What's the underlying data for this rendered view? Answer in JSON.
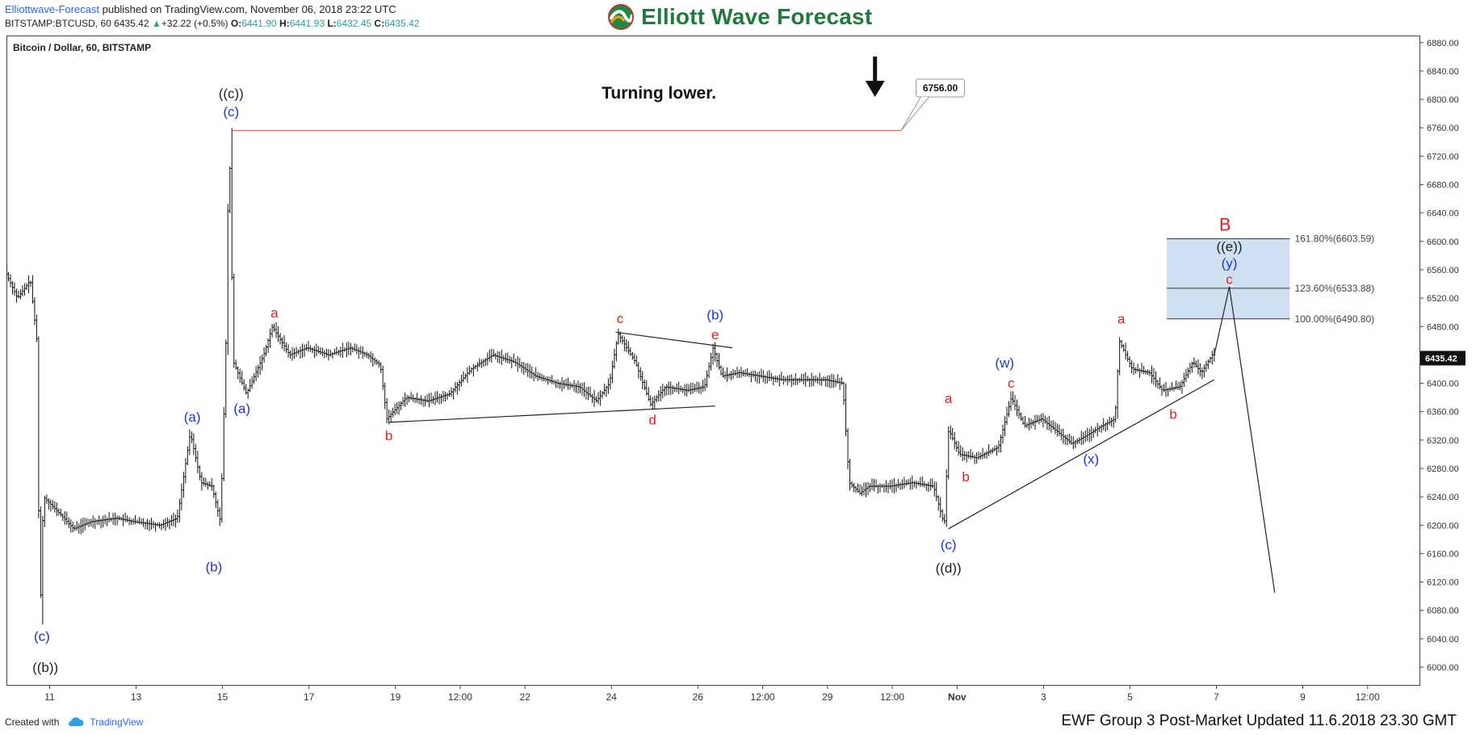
{
  "header": {
    "publisher": "Elliottwave-Forecast",
    "published_text": "published on TradingView.com, November 06, 2018 23:22 UTC",
    "symbol": "BITSTAMP:BTCUSD, 60",
    "last": "6435.42",
    "change": "+32.22 (+0.5%)",
    "open_label": "O:",
    "open": "6441.90",
    "high_label": "H:",
    "high": "6441.93",
    "low_label": "L:",
    "low": "6432.45",
    "close_label": "C:",
    "close": "6435.42",
    "brand": "Elliott Wave Forecast"
  },
  "footer": {
    "created_with": "Created with",
    "tradingview": "TradingView",
    "updated": "EWF Group 3 Post-Market Updated 11.6.2018 23.30 GMT"
  },
  "colors": {
    "blue": "#1a34e0",
    "red": "#e01e1e",
    "black": "#222222",
    "target_box": "#cfe0f2",
    "resistance_line": "#e53935"
  },
  "chart_data": {
    "type": "candlestick",
    "title": "Bitcoin / Dollar, 60, BITSTAMP",
    "timeframe": "60",
    "ylim": [
      5975,
      6890
    ],
    "y_ticks": [
      6000,
      6040,
      6080,
      6120,
      6160,
      6200,
      6240,
      6280,
      6320,
      6360,
      6400,
      6440,
      6480,
      6520,
      6560,
      6600,
      6640,
      6680,
      6720,
      6760,
      6800,
      6840,
      6880
    ],
    "x_ticks": [
      {
        "label": "11",
        "t": 11.0
      },
      {
        "label": "13",
        "t": 13.0
      },
      {
        "label": "15",
        "t": 15.0
      },
      {
        "label": "17",
        "t": 17.0
      },
      {
        "label": "19",
        "t": 19.0
      },
      {
        "label": "12:00",
        "t": 20.5
      },
      {
        "label": "22",
        "t": 22.0
      },
      {
        "label": "24",
        "t": 24.0
      },
      {
        "label": "26",
        "t": 26.0
      },
      {
        "label": "12:00",
        "t": 27.5
      },
      {
        "label": "29",
        "t": 29.0
      },
      {
        "label": "12:00",
        "t": 30.5
      },
      {
        "label": "Nov",
        "t": 32.0
      },
      {
        "label": "3",
        "t": 34.0
      },
      {
        "label": "5",
        "t": 36.0
      },
      {
        "label": "7",
        "t": 38.0
      },
      {
        "label": "9",
        "t": 40.0
      },
      {
        "label": "12:00",
        "t": 41.5
      }
    ],
    "price_path": [
      [
        10.0,
        6560
      ],
      [
        10.3,
        6520
      ],
      [
        10.6,
        6545
      ],
      [
        10.75,
        6460
      ],
      [
        10.82,
        6060
      ],
      [
        10.9,
        6240
      ],
      [
        11.3,
        6215
      ],
      [
        11.6,
        6195
      ],
      [
        12.0,
        6205
      ],
      [
        12.6,
        6210
      ],
      [
        13.0,
        6205
      ],
      [
        13.6,
        6200
      ],
      [
        14.0,
        6210
      ],
      [
        14.3,
        6330
      ],
      [
        14.55,
        6260
      ],
      [
        14.8,
        6255
      ],
      [
        15.0,
        6205
      ],
      [
        15.12,
        6440
      ],
      [
        15.2,
        6760
      ],
      [
        15.3,
        6430
      ],
      [
        15.6,
        6385
      ],
      [
        16.0,
        6440
      ],
      [
        16.2,
        6480
      ],
      [
        16.6,
        6440
      ],
      [
        17.0,
        6450
      ],
      [
        17.5,
        6440
      ],
      [
        18.0,
        6450
      ],
      [
        18.4,
        6440
      ],
      [
        18.7,
        6425
      ],
      [
        18.85,
        6350
      ],
      [
        19.3,
        6380
      ],
      [
        19.8,
        6375
      ],
      [
        20.3,
        6385
      ],
      [
        20.8,
        6420
      ],
      [
        21.3,
        6440
      ],
      [
        21.8,
        6430
      ],
      [
        22.3,
        6410
      ],
      [
        22.8,
        6400
      ],
      [
        23.3,
        6395
      ],
      [
        23.7,
        6375
      ],
      [
        24.0,
        6400
      ],
      [
        24.2,
        6470
      ],
      [
        24.6,
        6430
      ],
      [
        24.95,
        6370
      ],
      [
        25.3,
        6395
      ],
      [
        25.8,
        6390
      ],
      [
        26.2,
        6395
      ],
      [
        26.4,
        6450
      ],
      [
        26.6,
        6410
      ],
      [
        27.0,
        6415
      ],
      [
        27.5,
        6410
      ],
      [
        28.0,
        6405
      ],
      [
        28.5,
        6405
      ],
      [
        29.0,
        6405
      ],
      [
        29.4,
        6400
      ],
      [
        29.55,
        6260
      ],
      [
        29.8,
        6245
      ],
      [
        30.0,
        6255
      ],
      [
        30.5,
        6255
      ],
      [
        31.0,
        6260
      ],
      [
        31.5,
        6255
      ],
      [
        31.75,
        6200
      ],
      [
        31.85,
        6335
      ],
      [
        32.1,
        6300
      ],
      [
        32.5,
        6295
      ],
      [
        33.0,
        6310
      ],
      [
        33.3,
        6380
      ],
      [
        33.6,
        6340
      ],
      [
        34.0,
        6350
      ],
      [
        34.4,
        6330
      ],
      [
        34.7,
        6315
      ],
      [
        35.0,
        6325
      ],
      [
        35.4,
        6340
      ],
      [
        35.7,
        6350
      ],
      [
        35.8,
        6460
      ],
      [
        36.1,
        6420
      ],
      [
        36.5,
        6415
      ],
      [
        36.8,
        6390
      ],
      [
        37.2,
        6395
      ],
      [
        37.5,
        6430
      ],
      [
        37.7,
        6415
      ],
      [
        37.95,
        6440
      ]
    ],
    "title_text": "Turning lower.",
    "resistance": {
      "price": 6756.0,
      "label": "6756.00",
      "from_t": 15.2,
      "to_t": 30.7
    },
    "target_box": {
      "t_from": 36.85,
      "t_to": 39.7,
      "p_from": 6490.8,
      "p_to": 6603.59,
      "levels": [
        {
          "label": "161.80%(6603.59)",
          "price": 6603.59
        },
        {
          "label": "123.60%(6533.88)",
          "price": 6533.88
        },
        {
          "label": "100.00%(6490.80)",
          "price": 6490.8
        }
      ]
    },
    "last_price_label": "6435.42",
    "projection": [
      [
        37.95,
        6440
      ],
      [
        38.3,
        6536
      ],
      [
        39.35,
        6105
      ]
    ],
    "trend_lines": [
      {
        "from": [
          18.85,
          6345
        ],
        "to": [
          26.4,
          6368
        ]
      },
      {
        "from": [
          24.1,
          6472
        ],
        "to": [
          26.8,
          6450
        ]
      },
      {
        "from": [
          31.8,
          6195
        ],
        "to": [
          37.95,
          6405
        ]
      }
    ],
    "wave_labels": [
      {
        "text": "((c))",
        "t": 15.2,
        "p": 6802,
        "color": "black"
      },
      {
        "text": "(c)",
        "t": 15.2,
        "p": 6776,
        "color": "blue"
      },
      {
        "text": "(c)",
        "t": 10.82,
        "p": 6037,
        "color": "blue"
      },
      {
        "text": "((b))",
        "t": 10.9,
        "p": 5993,
        "color": "black"
      },
      {
        "text": "(a)",
        "t": 14.3,
        "p": 6346,
        "color": "blue"
      },
      {
        "text": "(b)",
        "t": 14.8,
        "p": 6135,
        "color": "blue"
      },
      {
        "text": "(a)",
        "t": 15.45,
        "p": 6358,
        "color": "blue"
      },
      {
        "text": "a",
        "t": 16.2,
        "p": 6493,
        "color": "red"
      },
      {
        "text": "b",
        "t": 18.85,
        "p": 6320,
        "color": "red"
      },
      {
        "text": "c",
        "t": 24.2,
        "p": 6485,
        "color": "red"
      },
      {
        "text": "d",
        "t": 24.95,
        "p": 6342,
        "color": "red"
      },
      {
        "text": "(b)",
        "t": 26.4,
        "p": 6490,
        "color": "blue"
      },
      {
        "text": "e",
        "t": 26.4,
        "p": 6462,
        "color": "red"
      },
      {
        "text": "a",
        "t": 31.8,
        "p": 6372,
        "color": "red"
      },
      {
        "text": "b",
        "t": 32.2,
        "p": 6262,
        "color": "red"
      },
      {
        "text": "(w)",
        "t": 33.1,
        "p": 6422,
        "color": "blue"
      },
      {
        "text": "c",
        "t": 33.25,
        "p": 6394,
        "color": "red"
      },
      {
        "text": "(c)",
        "t": 31.8,
        "p": 6166,
        "color": "blue"
      },
      {
        "text": "((d))",
        "t": 31.8,
        "p": 6133,
        "color": "black"
      },
      {
        "text": "(x)",
        "t": 35.1,
        "p": 6287,
        "color": "blue"
      },
      {
        "text": "a",
        "t": 35.8,
        "p": 6484,
        "color": "red"
      },
      {
        "text": "b",
        "t": 37.0,
        "p": 6350,
        "color": "red"
      },
      {
        "text": "B",
        "t": 38.2,
        "p": 6615,
        "color": "red",
        "big": true
      },
      {
        "text": "((e))",
        "t": 38.3,
        "p": 6586,
        "color": "black"
      },
      {
        "text": "(y)",
        "t": 38.3,
        "p": 6563,
        "color": "blue"
      },
      {
        "text": "c",
        "t": 38.3,
        "p": 6540,
        "color": "red"
      }
    ]
  }
}
